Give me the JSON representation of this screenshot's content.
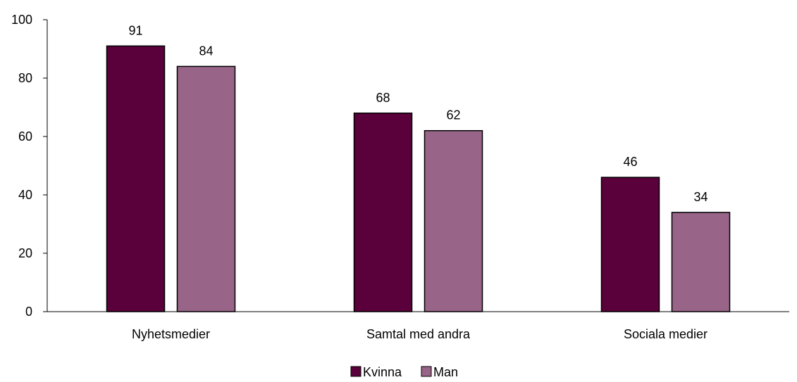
{
  "chart_data": {
    "type": "bar",
    "categories": [
      "Nyhetsmedier",
      "Samtal med andra",
      "Sociala medier"
    ],
    "series": [
      {
        "name": "Kvinna",
        "values": [
          91,
          68,
          46
        ],
        "color": "#5a003a"
      },
      {
        "name": "Man",
        "values": [
          84,
          62,
          34
        ],
        "color": "#986488"
      }
    ],
    "ylim": [
      0,
      100
    ],
    "yticks": [
      0,
      20,
      40,
      60,
      80,
      100
    ],
    "data_labels": true,
    "grid": false,
    "legend_position": "bottom"
  }
}
